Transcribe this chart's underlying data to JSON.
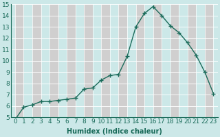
{
  "x": [
    0,
    1,
    2,
    3,
    4,
    5,
    6,
    7,
    8,
    9,
    10,
    11,
    12,
    13,
    14,
    15,
    16,
    17,
    18,
    19,
    20,
    21,
    22,
    23
  ],
  "y": [
    4.8,
    5.9,
    6.1,
    6.4,
    6.4,
    6.5,
    6.6,
    6.7,
    7.5,
    7.6,
    8.3,
    8.7,
    8.8,
    10.4,
    13.0,
    14.2,
    14.8,
    14.0,
    13.1,
    12.5,
    11.6,
    10.5,
    9.0,
    7.1
  ],
  "line_color": "#1a6b5a",
  "marker": "+",
  "marker_size": 4,
  "marker_linewidth": 1.0,
  "line_width": 1.0,
  "xlabel": "Humidex (Indice chaleur)",
  "xlim": [
    -0.5,
    23.5
  ],
  "ylim": [
    5,
    15
  ],
  "yticks": [
    5,
    6,
    7,
    8,
    9,
    10,
    11,
    12,
    13,
    14,
    15
  ],
  "xticks": [
    0,
    1,
    2,
    3,
    4,
    5,
    6,
    7,
    8,
    9,
    10,
    11,
    12,
    13,
    14,
    15,
    16,
    17,
    18,
    19,
    20,
    21,
    22,
    23
  ],
  "bg_color": "#cce8e8",
  "plot_bg_color": "#cce8e8",
  "grid_color_major": "#b8d4d4",
  "grid_color_minor": "#dbb8b8",
  "xlabel_fontsize": 7,
  "tick_fontsize": 6.5,
  "tick_color": "#1a6b5a"
}
